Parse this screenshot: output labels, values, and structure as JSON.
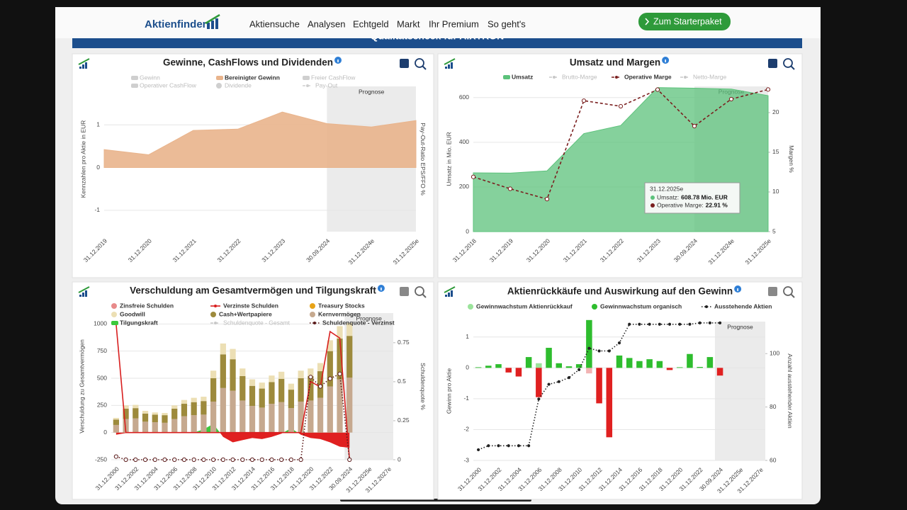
{
  "nav": {
    "logo": "Aktienfinder",
    "links": [
      "Aktiensuche",
      "Analysen",
      "Echtgeld",
      "Markt",
      "Ihr Premium",
      "So geht's"
    ],
    "button": "Zum Starterpaket",
    "banner": "Qualitätscheck für AIXTRON"
  },
  "chart_data": [
    {
      "type": "area",
      "title": "Gewinne, CashFlows und Dividenden",
      "y_label": "Kennzahlen pro Aktie in EUR",
      "y2_label": "Pay-Out-Ratio EPS/FFO %",
      "categories": [
        "31.12.2019",
        "31.12.2020",
        "31.12.2021",
        "31.12.2022",
        "31.12.2023",
        "30.09.2024",
        "31.12.2024e",
        "31.12.2025e"
      ],
      "ylim": [
        -1.5,
        1.9
      ],
      "yticks": [
        -1,
        0,
        1
      ],
      "grid": true,
      "forecast": {
        "label": "Prognose",
        "from": "30.09.2024"
      },
      "series": [
        {
          "name": "Gewinn",
          "type": "area",
          "color": "#cfcfcf",
          "visible": false
        },
        {
          "name": "Bereinigter Gewinn",
          "type": "area",
          "color": "#e9b48c",
          "values": [
            0.42,
            0.3,
            0.87,
            0.9,
            1.3,
            1.03,
            0.95,
            1.1
          ]
        },
        {
          "name": "Freier CashFlow",
          "type": "area",
          "color": "#cfcfcf",
          "visible": false
        },
        {
          "name": "Operativer CashFlow",
          "type": "area",
          "color": "#cfcfcf",
          "visible": false
        },
        {
          "name": "Dividende",
          "type": "bar",
          "color": "#cfcfcf",
          "visible": false
        },
        {
          "name": "Pay-Out",
          "type": "line",
          "color": "#cfcfcf",
          "dash": "dashed",
          "visible": false
        }
      ]
    },
    {
      "type": "combo",
      "title": "Umsatz und Margen",
      "y_label": "Umsatz in Mio. EUR",
      "y2_label": "Margen %",
      "categories": [
        "31.12.2018",
        "31.12.2019",
        "31.12.2020",
        "31.12.2021",
        "31.12.2022",
        "31.12.2023",
        "30.09.2024",
        "31.12.2024e",
        "31.12.2025e"
      ],
      "ylim": [
        0,
        650
      ],
      "yticks": [
        0,
        200,
        400,
        600
      ],
      "y2lim": [
        5,
        23.3
      ],
      "y2ticks": [
        5,
        10,
        15,
        20
      ],
      "grid": true,
      "forecast": {
        "label": "Prognose",
        "from": "30.09.2024"
      },
      "series": [
        {
          "name": "Umsatz",
          "type": "area",
          "color": "#5cc27b",
          "values": [
            263,
            262,
            272,
            439,
            475,
            645,
            642,
            638,
            608.78
          ]
        },
        {
          "name": "Brutto-Marge",
          "type": "line",
          "color": "#c8c8c8",
          "dash": "dashed",
          "visible": false
        },
        {
          "name": "Operative Marge",
          "type": "line",
          "axis": "y2",
          "color": "#7a1f1f",
          "dash": "dashed",
          "markers": true,
          "values": [
            11.9,
            10.4,
            9.1,
            21.5,
            20.8,
            22.9,
            18.3,
            21.7,
            22.91
          ]
        },
        {
          "name": "Netto-Marge",
          "type": "line",
          "color": "#c8c8c8",
          "dash": "dashed",
          "visible": false
        }
      ],
      "tooltip": {
        "title": "31.12.2025e",
        "items": [
          {
            "label": "Umsatz:",
            "value": "608.78 Mio. EUR",
            "color": "#5cc27b"
          },
          {
            "label": "Operative Marge:",
            "value": "22.91 %",
            "color": "#7a1f1f"
          }
        ]
      }
    },
    {
      "type": "combo",
      "title": "Verschuldung am Gesamtvermögen und Tilgungskraft",
      "y_label": "Verschuldung zu Gesamtvermögen",
      "y2_label": "Schuldenquote %",
      "categories": [
        "31.12.2000",
        null,
        "31.12.2002",
        null,
        "31.12.2004",
        null,
        "31.12.2006",
        null,
        "31.12.2008",
        null,
        "31.12.2010",
        null,
        "31.12.2012",
        null,
        "31.12.2014",
        null,
        "31.12.2016",
        null,
        "31.12.2018",
        null,
        "31.12.2020",
        null,
        "31.12.2022",
        null,
        "30.09.2024",
        null,
        "31.12.2025e",
        null,
        "31.12.2027e"
      ],
      "ylim": [
        -250,
        1100
      ],
      "yticks": [
        -250,
        0,
        250,
        500,
        750,
        1000
      ],
      "y2lim": [
        0,
        0.94
      ],
      "y2ticks": [
        0,
        0.25,
        0.5,
        0.75
      ],
      "grid": true,
      "forecast": {
        "label": "Prognose",
        "from": "30.09.2024"
      },
      "series": [
        {
          "name": "Zinsfreie Schulden",
          "type": "bar",
          "color": "#e88a8a"
        },
        {
          "name": "Verzinste Schulden",
          "type": "line",
          "color": "#d81e1e",
          "values": [
            1000,
            0,
            0,
            0,
            0,
            0,
            0,
            0,
            0,
            0,
            0,
            0,
            0,
            0,
            0,
            0,
            0,
            0,
            0,
            0,
            470,
            420,
            930,
            870,
            -250,
            null,
            null,
            null,
            null
          ]
        },
        {
          "name": "Treasury Stocks",
          "type": "bar",
          "color": "#e8a317"
        },
        {
          "name": "Goodwill",
          "type": "bar",
          "stack": true,
          "color": "#ecdfb4",
          "values": [
            15,
            30,
            30,
            25,
            20,
            20,
            30,
            35,
            40,
            40,
            70,
            100,
            95,
            70,
            60,
            55,
            60,
            65,
            55,
            70,
            70,
            75,
            100,
            115,
            120,
            null,
            null,
            null,
            null
          ]
        },
        {
          "name": "Cash+Wertpapiere",
          "type": "bar",
          "stack": true,
          "color": "#9d8a3c",
          "values": [
            50,
            95,
            95,
            75,
            70,
            70,
            95,
            115,
            120,
            125,
            215,
            310,
            290,
            225,
            185,
            175,
            200,
            215,
            170,
            215,
            225,
            245,
            325,
            375,
            385,
            null,
            null,
            null,
            null
          ]
        },
        {
          "name": "Kernvermögen",
          "type": "bar",
          "stack": true,
          "color": "#c6a98f",
          "values": [
            70,
            125,
            130,
            100,
            95,
            90,
            125,
            150,
            160,
            165,
            285,
            410,
            385,
            295,
            245,
            230,
            265,
            280,
            225,
            285,
            295,
            320,
            425,
            490,
            505,
            null,
            null,
            null,
            null
          ]
        },
        {
          "name": "Tilgungskraft",
          "type": "area",
          "color": "#3cc83c",
          "negative_color": "#e02020",
          "values": [
            -20,
            -5,
            0,
            0,
            0,
            0,
            -5,
            -5,
            0,
            30,
            80,
            -40,
            -90,
            -70,
            -50,
            -60,
            -40,
            -10,
            40,
            -20,
            -50,
            -60,
            -90,
            -130,
            -140,
            null,
            null,
            null,
            null
          ]
        },
        {
          "name": "Schuldenquote - Gesamt",
          "type": "line",
          "color": "#c8c8c8",
          "dash": "dashed",
          "visible": false
        },
        {
          "name": "Schuldenquote - Verzinst",
          "type": "line",
          "axis": "y2",
          "color": "#5a1a1a",
          "dash": "dotted",
          "markers": true,
          "values": [
            0.02,
            0,
            0,
            0,
            0,
            0,
            0,
            0,
            0,
            0,
            0,
            0,
            0,
            0,
            0,
            0,
            0,
            0,
            0,
            0,
            0.53,
            0.47,
            0.52,
            0.55,
            0,
            null,
            null,
            null,
            null
          ]
        }
      ]
    },
    {
      "type": "combo",
      "title": "Aktienrückkäufe und Auswirkung auf den Gewinn",
      "y_label": "Gewinn pro Aktie",
      "y2_label": "Anzahl ausstehender Aktien",
      "categories": [
        "31.12.2000",
        null,
        "31.12.2002",
        null,
        "31.12.2004",
        null,
        "31.12.2006",
        null,
        "31.12.2008",
        null,
        "31.12.2010",
        null,
        "31.12.2012",
        null,
        "31.12.2014",
        null,
        "31.12.2016",
        null,
        "31.12.2018",
        null,
        "31.12.2020",
        null,
        "31.12.2022",
        null,
        "30.09.2024",
        null,
        "31.12.2025e",
        null,
        "31.12.2027e"
      ],
      "ylim": [
        -3,
        1.5
      ],
      "yticks": [
        -3,
        -2,
        -1,
        0,
        1
      ],
      "y2lim": [
        60,
        112
      ],
      "y2ticks": [
        60,
        80,
        100
      ],
      "grid": true,
      "forecast": {
        "label": "Prognose",
        "from": "30.09.2024"
      },
      "series": [
        {
          "name": "Gewinnwachstum Aktienrückkauf",
          "type": "bar",
          "color": "#9be39b",
          "negative_color": "#f2b4b4",
          "values": [
            0,
            0,
            0,
            0,
            0,
            0,
            0.15,
            0,
            0,
            0,
            0,
            -0.18,
            0,
            0,
            0,
            0,
            0,
            0,
            0,
            0,
            0,
            0,
            0,
            0,
            0,
            null,
            null,
            null,
            null
          ]
        },
        {
          "name": "Gewinnwachstum organisch",
          "type": "bar",
          "color": "#2ebd2e",
          "negative_color": "#e02020",
          "values": [
            0.02,
            0.07,
            0.12,
            -0.15,
            -0.28,
            0.35,
            -0.95,
            0.65,
            0.15,
            0.05,
            0.12,
            1.55,
            -1.15,
            -2.25,
            0.4,
            0.32,
            0.22,
            0.28,
            0.22,
            -0.07,
            0.02,
            0.45,
            0.03,
            0.35,
            -0.25,
            null,
            null,
            null,
            null
          ]
        },
        {
          "name": "Ausstehende Aktien",
          "type": "line",
          "axis": "y2",
          "color": "#222222",
          "dash": "dotted",
          "markers": true,
          "values": [
            64,
            65.5,
            65.5,
            65.5,
            65.5,
            65.5,
            83,
            88.5,
            89.5,
            91,
            94,
            102,
            101,
            101,
            104,
            111,
            111,
            111,
            111,
            111,
            111,
            111,
            111.5,
            111.5,
            111.5,
            null,
            null,
            null,
            null
          ]
        }
      ]
    }
  ]
}
